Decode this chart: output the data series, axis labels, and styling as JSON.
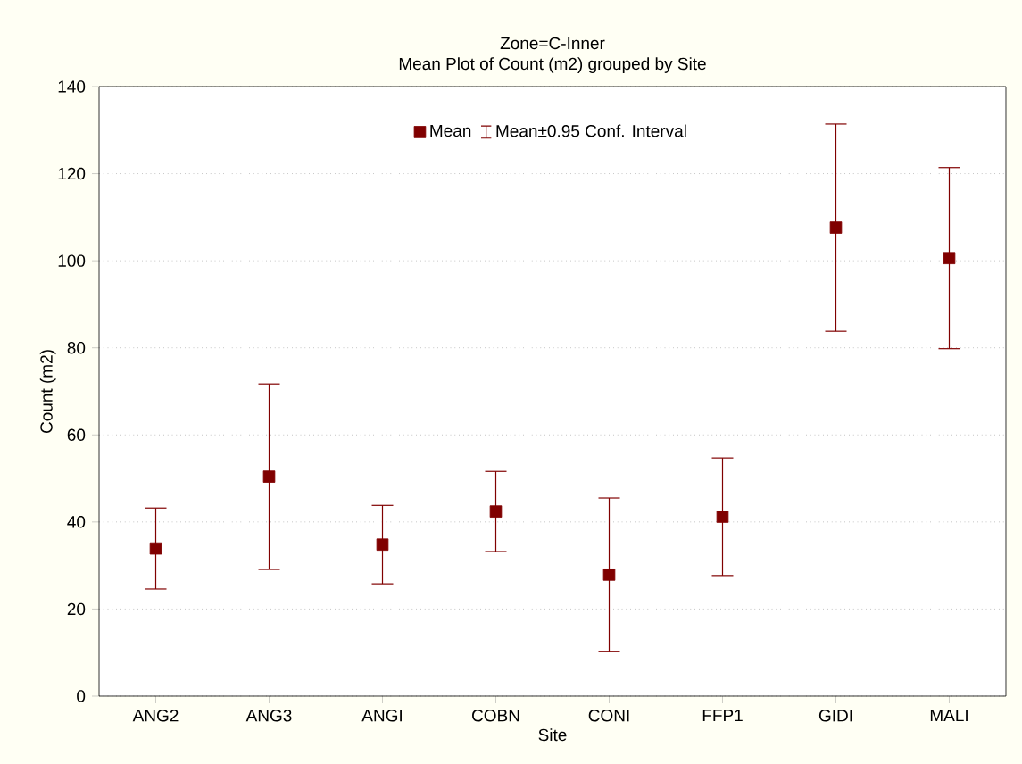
{
  "chart_data": {
    "type": "scatter",
    "title": "Zone=C-Inner",
    "subtitle": "Mean Plot of Count (m2) grouped by  Site",
    "xlabel": "Site",
    "ylabel": "Count (m2)",
    "categories": [
      "ANG2",
      "ANG3",
      "ANGI",
      "COBN",
      "CONI",
      "FFP1",
      "GIDI",
      "MALI"
    ],
    "series": [
      {
        "name": "Mean",
        "color": "#800000",
        "values": [
          33.9,
          50.4,
          34.8,
          42.4,
          27.9,
          41.2,
          107.6,
          100.6
        ],
        "errors": [
          9.3,
          21.3,
          9.0,
          9.2,
          17.6,
          13.5,
          23.8,
          20.8
        ]
      }
    ],
    "annotations": [
      "Mean±0.95 Conf. Interval"
    ],
    "ylim": [
      0,
      140
    ],
    "yticks": [
      0,
      20,
      40,
      60,
      80,
      100,
      120,
      140
    ],
    "grid": "y",
    "legend": "top",
    "marker": "square"
  }
}
